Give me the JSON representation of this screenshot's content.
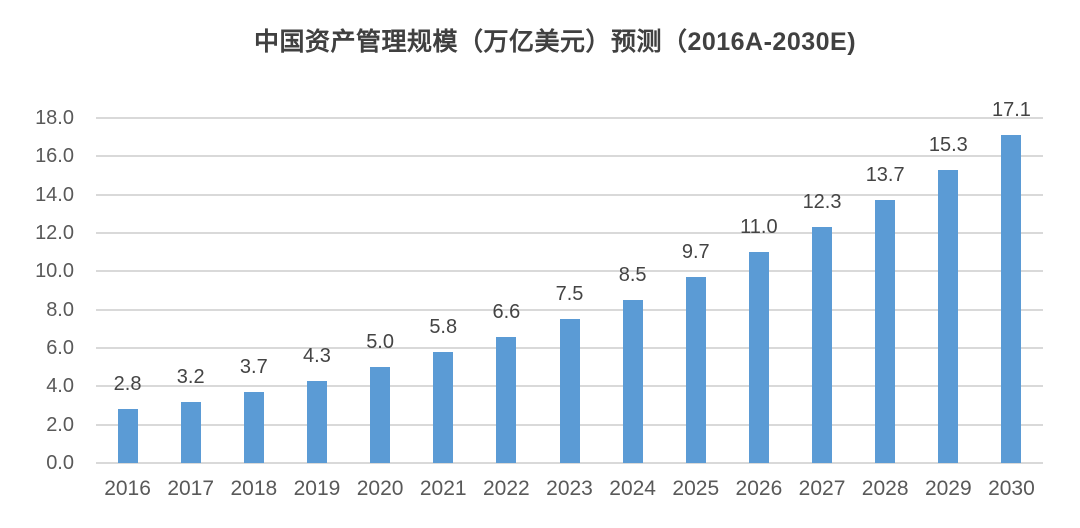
{
  "page": {
    "background": "#ffffff"
  },
  "chart_data": {
    "type": "bar",
    "title": "中国资产管理规模（万亿美元）预测（2016A-2030E)",
    "categories": [
      "2016",
      "2017",
      "2018",
      "2019",
      "2020",
      "2021",
      "2022",
      "2023",
      "2024",
      "2025",
      "2026",
      "2027",
      "2028",
      "2029",
      "2030"
    ],
    "values": [
      2.8,
      3.2,
      3.7,
      4.3,
      5.0,
      5.8,
      6.6,
      7.5,
      8.5,
      9.7,
      11.0,
      12.3,
      13.7,
      15.3,
      17.1
    ],
    "value_labels": [
      "2.8",
      "3.2",
      "3.7",
      "4.3",
      "5.0",
      "5.8",
      "6.6",
      "7.5",
      "8.5",
      "9.7",
      "11.0",
      "12.3",
      "13.7",
      "15.3",
      "17.1"
    ],
    "xlabel": "",
    "ylabel": "",
    "ylim": [
      0,
      18
    ],
    "y_tick_step": 2,
    "y_tick_labels": [
      "0.0",
      "2.0",
      "4.0",
      "6.0",
      "8.0",
      "10.0",
      "12.0",
      "14.0",
      "16.0",
      "18.0"
    ],
    "grid": true,
    "legend_position": "none",
    "colors": {
      "bar": "#5B9BD5",
      "gridline": "#D9D9D9",
      "axis_line": "#D9D9D9",
      "axis_tick_text": "#595959",
      "data_label_text": "#444444",
      "title_text": "#404040"
    }
  }
}
